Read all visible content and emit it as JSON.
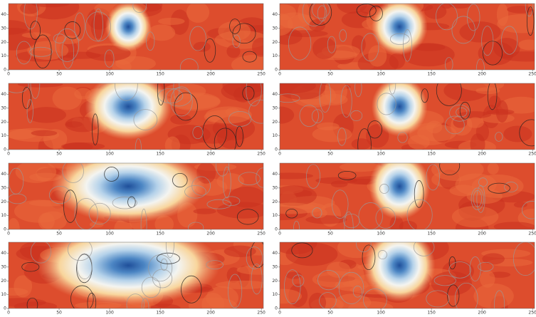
{
  "chart_data": [
    {
      "type": "contour",
      "xlim": [
        0,
        252
      ],
      "ylim": [
        0,
        48
      ],
      "xticks": [
        0,
        50,
        100,
        150,
        200,
        250
      ],
      "yticks": [
        0,
        10,
        20,
        30,
        40
      ]
    },
    {
      "type": "contour",
      "xlim": [
        0,
        252
      ],
      "ylim": [
        0,
        48
      ],
      "xticks": [
        0,
        50,
        100,
        150,
        200,
        250
      ],
      "yticks": [
        0,
        10,
        20,
        30,
        40
      ]
    },
    {
      "type": "contour",
      "xlim": [
        0,
        252
      ],
      "ylim": [
        0,
        48
      ],
      "xticks": [
        0,
        50,
        100,
        150,
        200,
        250
      ],
      "yticks": [
        0,
        10,
        20,
        30,
        40
      ]
    },
    {
      "type": "contour",
      "xlim": [
        0,
        252
      ],
      "ylim": [
        0,
        48
      ],
      "xticks": [
        0,
        50,
        100,
        150,
        200,
        250
      ],
      "yticks": [
        0,
        10,
        20,
        30,
        40
      ]
    },
    {
      "type": "contour",
      "xlim": [
        0,
        252
      ],
      "ylim": [
        0,
        48
      ],
      "xticks": [
        0,
        50,
        100,
        150,
        200,
        250
      ],
      "yticks": [
        0,
        10,
        20,
        30,
        40
      ]
    },
    {
      "type": "contour",
      "xlim": [
        0,
        252
      ],
      "ylim": [
        0,
        48
      ],
      "xticks": [
        0,
        50,
        100,
        150,
        200,
        250
      ],
      "yticks": [
        0,
        10,
        20,
        30,
        40
      ]
    },
    {
      "type": "contour",
      "xlim": [
        0,
        252
      ],
      "ylim": [
        0,
        48
      ],
      "xticks": [
        0,
        50,
        100,
        150,
        200,
        250
      ],
      "yticks": [
        0,
        10,
        20,
        30,
        40
      ]
    },
    {
      "type": "contour",
      "xlim": [
        0,
        252
      ],
      "ylim": [
        0,
        48
      ],
      "xticks": [
        0,
        50,
        100,
        150,
        200,
        250
      ],
      "yticks": [
        0,
        10,
        20,
        30,
        40
      ]
    }
  ]
}
